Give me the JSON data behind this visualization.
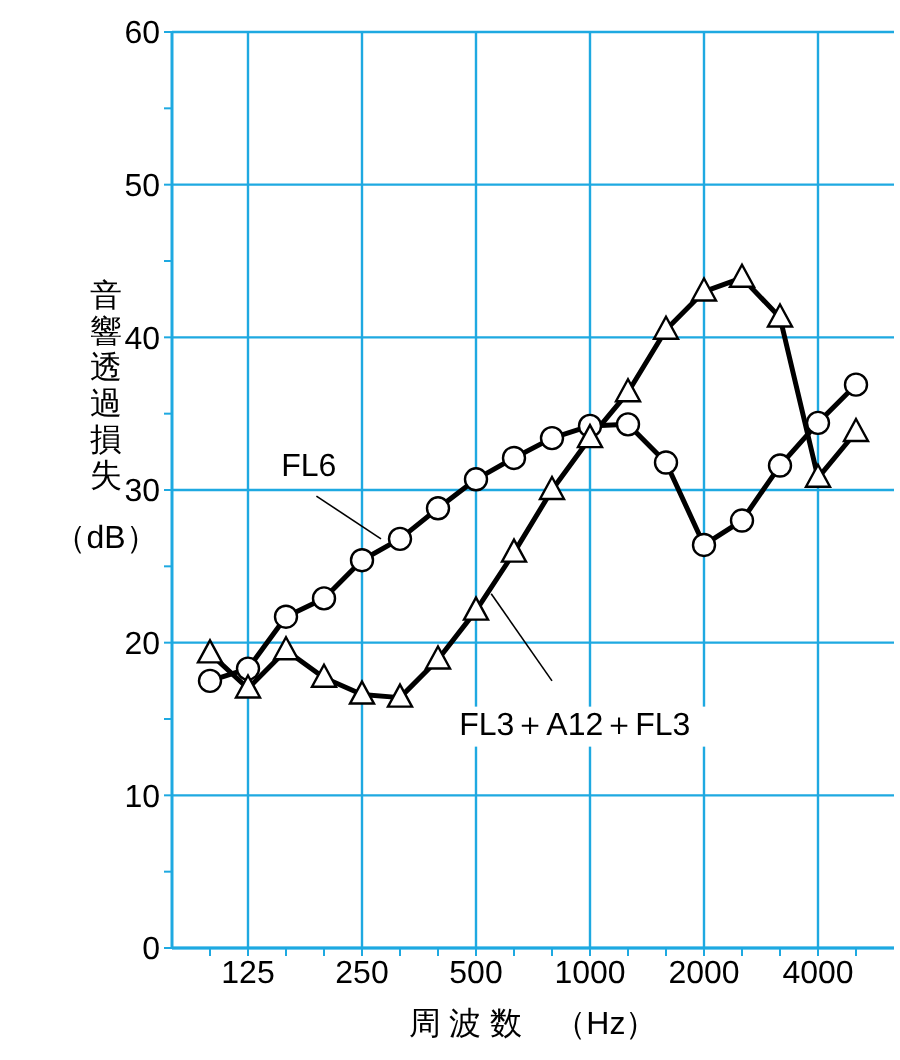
{
  "chart_data": {
    "type": "line",
    "xlabel": "周 波 数　（Hz）",
    "ylabel": "音響透過損失（dB）",
    "categories": [
      null,
      "125",
      null,
      null,
      "250",
      null,
      null,
      "500",
      null,
      null,
      "1000",
      null,
      null,
      "2000",
      null,
      null,
      "4000",
      null
    ],
    "series": [
      {
        "name": "FL6",
        "color": "#000000",
        "marker": "circle",
        "values": [
          17.5,
          18.3,
          21.7,
          22.9,
          25.4,
          26.8,
          28.8,
          30.7,
          32.1,
          33.4,
          34.2,
          34.3,
          31.8,
          26.4,
          28.0,
          31.6,
          34.4,
          36.9
        ]
      },
      {
        "name": "FL3＋A12＋FL3",
        "color": "#000000",
        "marker": "triangle",
        "values": [
          19.3,
          17.0,
          19.5,
          17.7,
          16.6,
          16.4,
          18.9,
          22.1,
          25.9,
          30.0,
          33.4,
          36.4,
          40.5,
          43.0,
          43.9,
          41.3,
          30.8,
          33.8
        ]
      }
    ],
    "ylim": [
      0,
      60
    ],
    "yticks": [
      0,
      {
        "value": 5,
        "label": null
      },
      10,
      {
        "value": 15,
        "label": null
      },
      20,
      {
        "value": 25,
        "label": null
      },
      30,
      {
        "value": 35,
        "label": null
      },
      40,
      {
        "value": 45,
        "label": null
      },
      50,
      {
        "value": 55,
        "label": null
      },
      60
    ],
    "grid": true,
    "legend": false,
    "line_style": "solid"
  }
}
